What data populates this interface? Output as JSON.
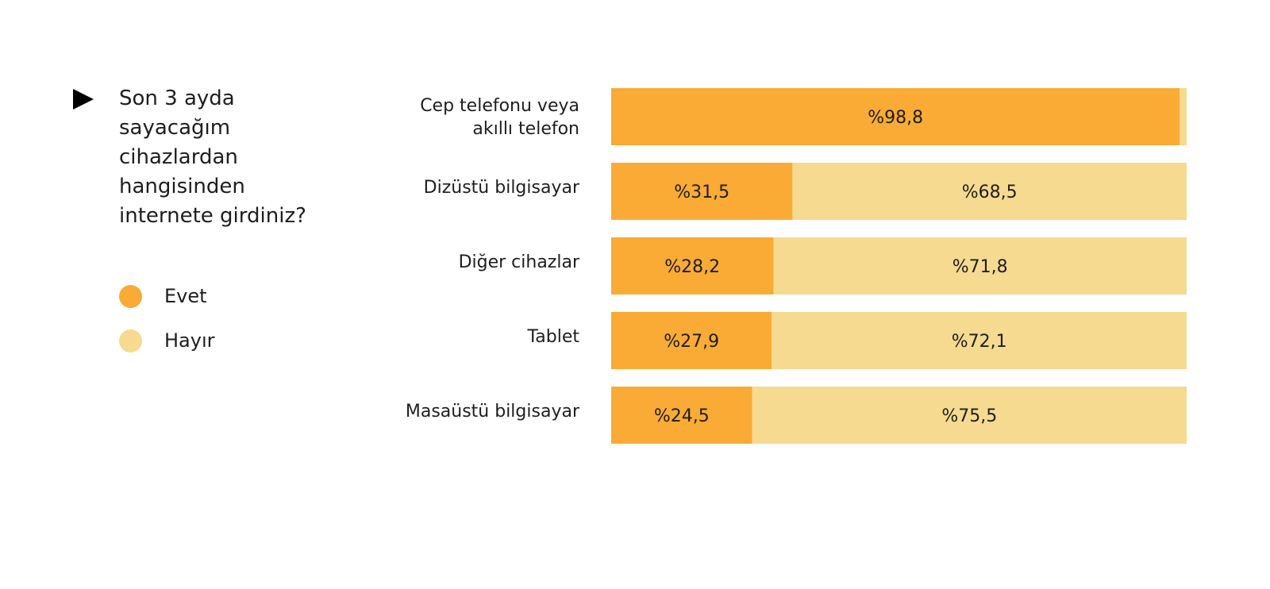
{
  "title": "Son 3 ayda\nsayacağım\ncihazlardan\nhangisinden\ninternete girdiniz?",
  "legend": [
    {
      "name": "Evet",
      "color": "#f9ab35"
    },
    {
      "name": "Hayır",
      "color": "#f5da90"
    }
  ],
  "chart_data": {
    "type": "bar",
    "orientation": "horizontal",
    "stacked": true,
    "categories": [
      [
        "Cep telefonu veya",
        "akıllı telefon"
      ],
      [
        "Dizüstü bilgisayar"
      ],
      [
        "Diğer cihazlar"
      ],
      [
        "Tablet"
      ],
      [
        "Masaüstü bilgisayar"
      ]
    ],
    "series": [
      {
        "name": "Evet",
        "color": "#f9ab35",
        "values": [
          98.8,
          31.5,
          28.2,
          27.9,
          24.5
        ],
        "labels": [
          "%98,8",
          "%31,5",
          "%28,2",
          "%27,9",
          "%24,5"
        ]
      },
      {
        "name": "Hayır",
        "color": "#f5da90",
        "values": [
          1.2,
          68.5,
          71.8,
          72.1,
          75.5
        ],
        "labels": [
          "",
          "%68,5",
          "%71,8",
          "%72,1",
          "%75,5"
        ]
      }
    ],
    "xlim": [
      0,
      100
    ],
    "grid": false,
    "legend_position": "left"
  }
}
